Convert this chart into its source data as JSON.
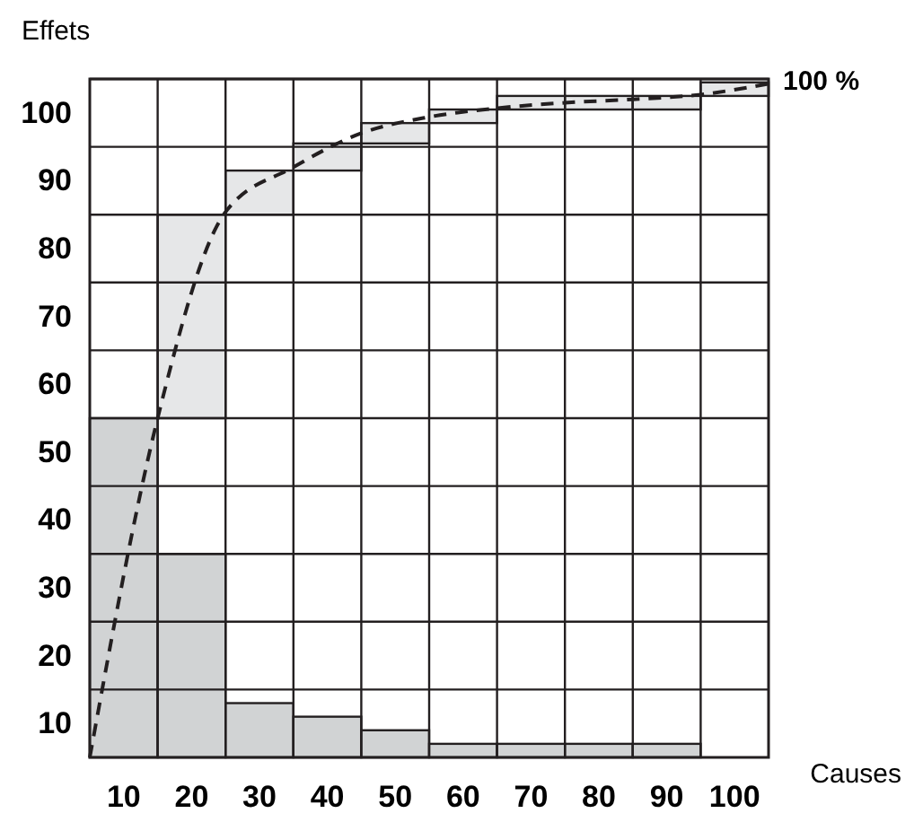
{
  "chart_data": {
    "type": "bar",
    "xlabel": "Causes",
    "ylabel": "Effets",
    "series": [
      {
        "color": "#d1d3d4",
        "x": [
          10,
          20,
          30,
          40,
          50,
          60,
          70,
          80,
          90
        ],
        "base": [
          0,
          0,
          0,
          0,
          0,
          0,
          0,
          0,
          0
        ],
        "values": [
          50,
          30,
          8,
          6,
          4,
          2,
          2,
          2,
          2
        ]
      },
      {
        "color": "#e6e7e8",
        "x": [
          20,
          30,
          40,
          50,
          60,
          70,
          80,
          90,
          100
        ],
        "base": [
          50,
          80,
          86.5,
          90.5,
          93.5,
          95.5,
          95.5,
          95.5,
          97.5
        ],
        "values": [
          30,
          6.5,
          4,
          3,
          2,
          2,
          2,
          2,
          2
        ]
      },
      {
        "type": "line",
        "color": "#231f20",
        "line_style": "dashed",
        "x": [
          5,
          15,
          25,
          35,
          45,
          55,
          65,
          75,
          85,
          95,
          105
        ],
        "values": [
          0,
          50,
          80.4,
          87,
          92,
          94.4,
          95.7,
          96.5,
          97,
          97.7,
          99.3
        ]
      }
    ],
    "xlim": [
      5,
      105
    ],
    "xticks": [
      10,
      20,
      30,
      40,
      50,
      60,
      70,
      80,
      90,
      100
    ],
    "ylim": [
      0,
      100
    ],
    "yticks": [
      10,
      20,
      30,
      40,
      50,
      60,
      70,
      80,
      90,
      100
    ],
    "grid": true,
    "annotations": [
      "100 %"
    ]
  }
}
